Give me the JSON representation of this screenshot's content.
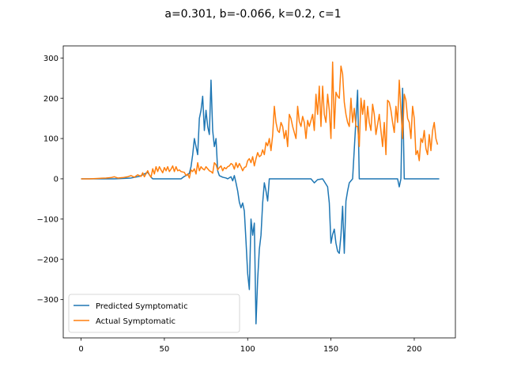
{
  "chart_data": {
    "type": "line",
    "title": "a=0.301, b=-0.066, k=0.2, c=1",
    "xlabel": "",
    "ylabel": "",
    "xlim": [
      -10.7,
      224.7
    ],
    "ylim": [
      -395,
      330
    ],
    "xticks": [
      0,
      50,
      100,
      150,
      200
    ],
    "yticks": [
      -300,
      -200,
      -100,
      0,
      100,
      200,
      300
    ],
    "grid": false,
    "legend_position": "lower-left",
    "series": [
      {
        "name": "Predicted Symptomatic",
        "color": "#1f77b4",
        "points": [
          [
            0,
            0
          ],
          [
            20,
            0
          ],
          [
            30,
            2
          ],
          [
            35,
            6
          ],
          [
            38,
            12
          ],
          [
            40,
            16
          ],
          [
            42,
            4
          ],
          [
            43,
            0
          ],
          [
            60,
            0
          ],
          [
            62,
            6
          ],
          [
            64,
            10
          ],
          [
            65,
            14
          ],
          [
            66,
            30
          ],
          [
            67,
            60
          ],
          [
            68,
            100
          ],
          [
            69,
            80
          ],
          [
            70,
            60
          ],
          [
            71,
            150
          ],
          [
            72,
            170
          ],
          [
            73,
            205
          ],
          [
            74,
            120
          ],
          [
            75,
            170
          ],
          [
            76,
            130
          ],
          [
            77,
            110
          ],
          [
            78,
            245
          ],
          [
            79,
            120
          ],
          [
            80,
            80
          ],
          [
            81,
            100
          ],
          [
            82,
            20
          ],
          [
            83,
            8
          ],
          [
            85,
            4
          ],
          [
            87,
            2
          ],
          [
            88,
            0
          ],
          [
            90,
            5
          ],
          [
            91,
            -5
          ],
          [
            92,
            8
          ],
          [
            93,
            -10
          ],
          [
            94,
            -30
          ],
          [
            95,
            -58
          ],
          [
            96,
            -72
          ],
          [
            97,
            -60
          ],
          [
            98,
            -80
          ],
          [
            99,
            -155
          ],
          [
            100,
            -235
          ],
          [
            101,
            -275
          ],
          [
            102,
            -100
          ],
          [
            103,
            -140
          ],
          [
            104,
            -110
          ],
          [
            105,
            -360
          ],
          [
            106,
            -250
          ],
          [
            107,
            -175
          ],
          [
            108,
            -140
          ],
          [
            109,
            -60
          ],
          [
            110,
            -10
          ],
          [
            111,
            -30
          ],
          [
            112,
            -55
          ],
          [
            113,
            0
          ],
          [
            135,
            0
          ],
          [
            138,
            0
          ],
          [
            140,
            -10
          ],
          [
            142,
            -2
          ],
          [
            145,
            0
          ],
          [
            148,
            -20
          ],
          [
            149,
            -60
          ],
          [
            150,
            -160
          ],
          [
            151,
            -138
          ],
          [
            152,
            -125
          ],
          [
            153,
            -160
          ],
          [
            154,
            -180
          ],
          [
            155,
            -185
          ],
          [
            156,
            -140
          ],
          [
            157,
            -68
          ],
          [
            158,
            -185
          ],
          [
            159,
            -55
          ],
          [
            160,
            -30
          ],
          [
            161,
            -10
          ],
          [
            162,
            -5
          ],
          [
            163,
            0
          ],
          [
            166,
            220
          ],
          [
            167,
            0
          ],
          [
            190,
            0
          ],
          [
            191,
            -20
          ],
          [
            192,
            0
          ],
          [
            193,
            225
          ],
          [
            194,
            0
          ],
          [
            195,
            0
          ],
          [
            215,
            0
          ]
        ]
      },
      {
        "name": "Actual Symptomatic",
        "color": "#ff7f0e",
        "points": [
          [
            0,
            0
          ],
          [
            5,
            0
          ],
          [
            10,
            1
          ],
          [
            15,
            2
          ],
          [
            18,
            3
          ],
          [
            20,
            5
          ],
          [
            22,
            2
          ],
          [
            25,
            3
          ],
          [
            28,
            5
          ],
          [
            30,
            8
          ],
          [
            32,
            4
          ],
          [
            34,
            10
          ],
          [
            36,
            6
          ],
          [
            37,
            15
          ],
          [
            38,
            5
          ],
          [
            40,
            20
          ],
          [
            41,
            10
          ],
          [
            42,
            4
          ],
          [
            43,
            25
          ],
          [
            44,
            12
          ],
          [
            45,
            30
          ],
          [
            46,
            18
          ],
          [
            47,
            30
          ],
          [
            48,
            22
          ],
          [
            49,
            15
          ],
          [
            50,
            28
          ],
          [
            51,
            20
          ],
          [
            52,
            30
          ],
          [
            53,
            18
          ],
          [
            54,
            24
          ],
          [
            55,
            32
          ],
          [
            56,
            18
          ],
          [
            57,
            30
          ],
          [
            58,
            20
          ],
          [
            59,
            22
          ],
          [
            60,
            18
          ],
          [
            62,
            16
          ],
          [
            63,
            8
          ],
          [
            64,
            12
          ],
          [
            65,
            2
          ],
          [
            66,
            22
          ],
          [
            67,
            18
          ],
          [
            68,
            25
          ],
          [
            69,
            12
          ],
          [
            70,
            40
          ],
          [
            71,
            20
          ],
          [
            72,
            30
          ],
          [
            73,
            25
          ],
          [
            74,
            22
          ],
          [
            75,
            30
          ],
          [
            76,
            25
          ],
          [
            77,
            20
          ],
          [
            78,
            18
          ],
          [
            79,
            14
          ],
          [
            80,
            40
          ],
          [
            81,
            35
          ],
          [
            82,
            22
          ],
          [
            83,
            28
          ],
          [
            84,
            32
          ],
          [
            85,
            20
          ],
          [
            86,
            28
          ],
          [
            87,
            25
          ],
          [
            88,
            30
          ],
          [
            89,
            32
          ],
          [
            90,
            38
          ],
          [
            91,
            35
          ],
          [
            92,
            24
          ],
          [
            93,
            40
          ],
          [
            94,
            28
          ],
          [
            95,
            38
          ],
          [
            96,
            30
          ],
          [
            97,
            20
          ],
          [
            98,
            28
          ],
          [
            99,
            30
          ],
          [
            100,
            45
          ],
          [
            101,
            50
          ],
          [
            102,
            40
          ],
          [
            103,
            55
          ],
          [
            104,
            32
          ],
          [
            105,
            50
          ],
          [
            106,
            65
          ],
          [
            107,
            55
          ],
          [
            108,
            58
          ],
          [
            109,
            72
          ],
          [
            110,
            60
          ],
          [
            111,
            90
          ],
          [
            112,
            82
          ],
          [
            113,
            100
          ],
          [
            114,
            70
          ],
          [
            115,
            108
          ],
          [
            116,
            180
          ],
          [
            117,
            140
          ],
          [
            118,
            120
          ],
          [
            119,
            115
          ],
          [
            120,
            140
          ],
          [
            121,
            130
          ],
          [
            122,
            100
          ],
          [
            123,
            120
          ],
          [
            124,
            80
          ],
          [
            125,
            160
          ],
          [
            126,
            150
          ],
          [
            127,
            130
          ],
          [
            128,
            115
          ],
          [
            129,
            100
          ],
          [
            130,
            180
          ],
          [
            131,
            142
          ],
          [
            132,
            130
          ],
          [
            133,
            155
          ],
          [
            134,
            140
          ],
          [
            135,
            100
          ],
          [
            136,
            145
          ],
          [
            137,
            130
          ],
          [
            138,
            145
          ],
          [
            139,
            160
          ],
          [
            140,
            120
          ],
          [
            141,
            210
          ],
          [
            142,
            160
          ],
          [
            143,
            230
          ],
          [
            144,
            130
          ],
          [
            145,
            230
          ],
          [
            146,
            160
          ],
          [
            147,
            140
          ],
          [
            148,
            210
          ],
          [
            149,
            170
          ],
          [
            150,
            100
          ],
          [
            151,
            290
          ],
          [
            152,
            125
          ],
          [
            153,
            215
          ],
          [
            154,
            205
          ],
          [
            155,
            200
          ],
          [
            156,
            280
          ],
          [
            157,
            260
          ],
          [
            158,
            190
          ],
          [
            159,
            160
          ],
          [
            160,
            140
          ],
          [
            161,
            130
          ],
          [
            162,
            200
          ],
          [
            163,
            140
          ],
          [
            164,
            175
          ],
          [
            165,
            130
          ],
          [
            166,
            130
          ],
          [
            167,
            80
          ],
          [
            168,
            200
          ],
          [
            169,
            160
          ],
          [
            170,
            195
          ],
          [
            171,
            120
          ],
          [
            172,
            180
          ],
          [
            173,
            140
          ],
          [
            174,
            120
          ],
          [
            175,
            185
          ],
          [
            176,
            160
          ],
          [
            177,
            110
          ],
          [
            178,
            135
          ],
          [
            179,
            160
          ],
          [
            180,
            120
          ],
          [
            181,
            80
          ],
          [
            182,
            140
          ],
          [
            183,
            60
          ],
          [
            184,
            195
          ],
          [
            185,
            190
          ],
          [
            186,
            170
          ],
          [
            187,
            140
          ],
          [
            188,
            115
          ],
          [
            189,
            180
          ],
          [
            190,
            140
          ],
          [
            191,
            245
          ],
          [
            192,
            170
          ],
          [
            193,
            100
          ],
          [
            194,
            210
          ],
          [
            195,
            195
          ],
          [
            196,
            150
          ],
          [
            197,
            140
          ],
          [
            198,
            100
          ],
          [
            199,
            180
          ],
          [
            200,
            150
          ],
          [
            201,
            60
          ],
          [
            202,
            70
          ],
          [
            203,
            45
          ],
          [
            204,
            100
          ],
          [
            205,
            90
          ],
          [
            206,
            120
          ],
          [
            207,
            75
          ],
          [
            208,
            60
          ],
          [
            209,
            110
          ],
          [
            210,
            70
          ],
          [
            211,
            120
          ],
          [
            212,
            140
          ],
          [
            213,
            100
          ],
          [
            214,
            85
          ]
        ]
      }
    ]
  }
}
